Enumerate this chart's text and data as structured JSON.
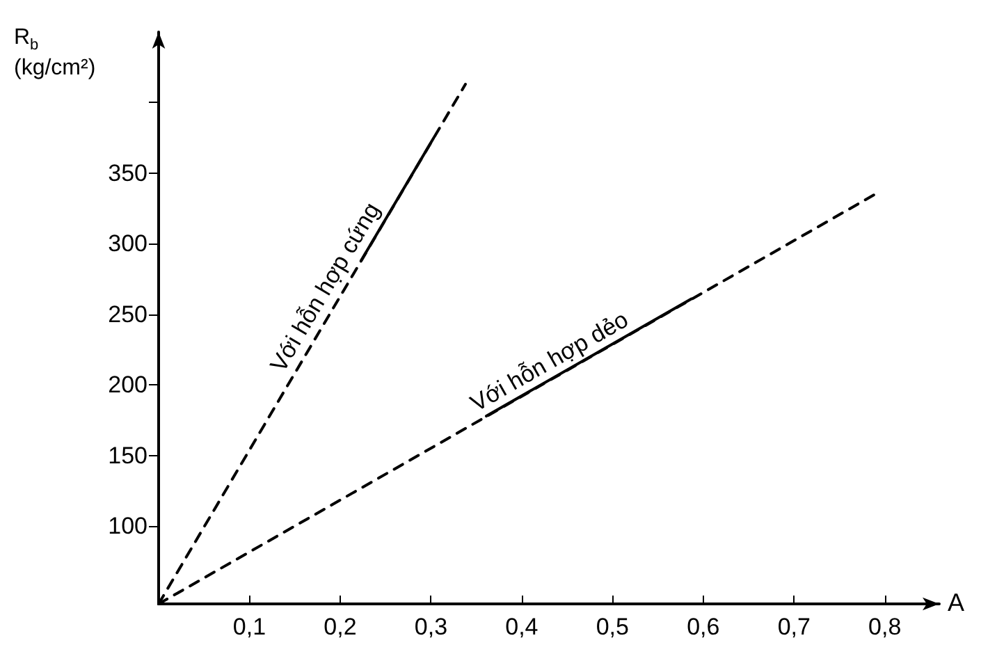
{
  "chart_data": {
    "type": "line",
    "xlabel": "A",
    "ylabel": "R$_{b}$ (kg/cm²)",
    "grid": false,
    "marker": "none",
    "xlim": [
      0,
      0.86
    ],
    "ylim": [
      45,
      450
    ],
    "xticks": [
      {
        "value": 0.1,
        "label": "0,1"
      },
      {
        "value": 0.2,
        "label": "0,2"
      },
      {
        "value": 0.3,
        "label": "0,3"
      },
      {
        "value": 0.4,
        "label": "0,4"
      },
      {
        "value": 0.5,
        "label": "0,5"
      },
      {
        "value": 0.6,
        "label": "0,6"
      },
      {
        "value": 0.7,
        "label": "0,7"
      },
      {
        "value": 0.8,
        "label": "0,8"
      }
    ],
    "yticks": [
      100,
      150,
      200,
      250,
      300,
      350,
      {
        "value": 400,
        "label": null
      }
    ],
    "series": [
      {
        "color": "#000000",
        "line_style": "dashed",
        "x": [
          0,
          0.338
        ],
        "values": [
          45,
          413
        ]
      },
      {
        "color": "#000000",
        "line_style": "solid",
        "x": [
          0.223,
          0.303
        ],
        "values": [
          288,
          375
        ]
      },
      {
        "color": "#000000",
        "line_style": "dashed",
        "x": [
          0,
          0.789
        ],
        "values": [
          45,
          335
        ]
      },
      {
        "color": "#000000",
        "line_style": "solid",
        "x": [
          0.361,
          0.587
        ],
        "values": [
          178,
          261
        ]
      }
    ],
    "annotations": [
      {
        "text": "Với hỗn hợp cứng",
        "x": 0.2,
        "y": 263
      },
      {
        "text": "Với hỗn hợp dẻo",
        "x": 0.44,
        "y": 206
      }
    ]
  }
}
